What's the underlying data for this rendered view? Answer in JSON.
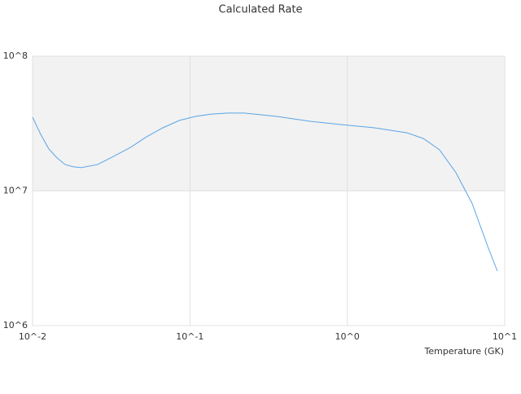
{
  "chart_data": {
    "type": "line",
    "title": "Calculated Rate",
    "xlabel": "Temperature (GK)",
    "xscale": "log",
    "yscale": "log",
    "xlim": [
      0.01,
      10
    ],
    "ylim": [
      1000000,
      100000000
    ],
    "xticks": [
      {
        "value": 0.01,
        "label": "10^-2"
      },
      {
        "value": 0.1,
        "label": "10^-1"
      },
      {
        "value": 1,
        "label": "10^0"
      },
      {
        "value": 10,
        "label": "10^1"
      }
    ],
    "yticks": [
      {
        "value": 1000000,
        "label": "10^6"
      },
      {
        "value": 10000000,
        "label": "10^7"
      },
      {
        "value": 100000000,
        "label": "10^8"
      }
    ],
    "grid": true,
    "band_color": "#f2f2f2",
    "x": [
      0.01,
      0.01126,
      0.01269,
      0.01429,
      0.0161,
      0.01815,
      0.02043,
      0.02594,
      0.0329,
      0.0418,
      0.053,
      0.0673,
      0.0854,
      0.1082,
      0.1374,
      0.1742,
      0.2213,
      0.356,
      0.574,
      0.924,
      1.487,
      2.39,
      3.04,
      3.85,
      4.89,
      6.21,
      7.88,
      8.98
    ],
    "series": [
      {
        "name": "Calculated Rate",
        "color": "#5aa5e6",
        "values": [
          35200000,
          26300000,
          20500000,
          17600000,
          15700000,
          15100000,
          14900000,
          15700000,
          18100000,
          21000000,
          25200000,
          29400000,
          33300000,
          35700000,
          37200000,
          37800000,
          37800000,
          35700000,
          32900000,
          31000000,
          29400000,
          27000000,
          24500000,
          20200000,
          13700000,
          8060000,
          3750000,
          2540000
        ]
      }
    ]
  }
}
